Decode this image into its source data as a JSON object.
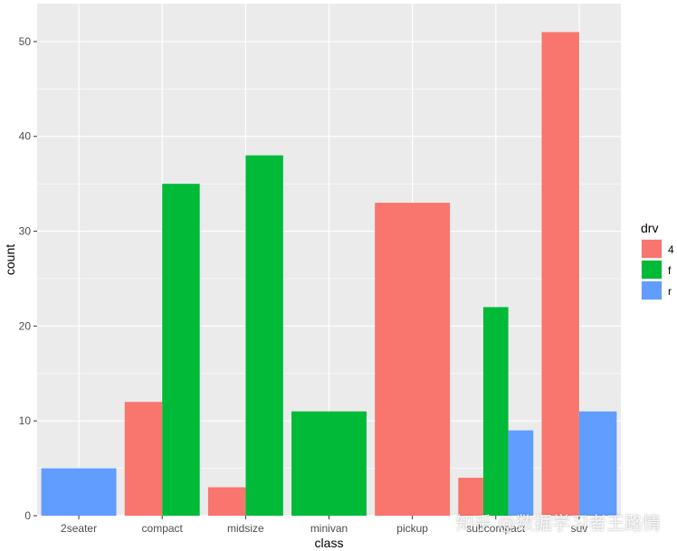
{
  "chart_data": {
    "type": "bar",
    "position": "dodge",
    "xlabel": "class",
    "ylabel": "count",
    "categories": [
      "2seater",
      "compact",
      "midsize",
      "minivan",
      "pickup",
      "subcompact",
      "suv"
    ],
    "ylim": [
      0,
      54
    ],
    "yticks": [
      0,
      10,
      20,
      30,
      40,
      50
    ],
    "grid": true,
    "legend": {
      "title": "drv",
      "placement": "right"
    },
    "series": [
      {
        "name": "4",
        "color": "#F8766D",
        "values": [
          null,
          12,
          3,
          null,
          33,
          4,
          51
        ]
      },
      {
        "name": "f",
        "color": "#00BA38",
        "values": [
          null,
          35,
          38,
          11,
          null,
          22,
          null
        ]
      },
      {
        "name": "r",
        "color": "#619CFF",
        "values": [
          5,
          null,
          null,
          null,
          null,
          9,
          11
        ]
      }
    ],
    "panel_color": "#EBEBEB",
    "grid_color": "#FFFFFF"
  },
  "watermark": "知乎 @数据学习者王路情"
}
